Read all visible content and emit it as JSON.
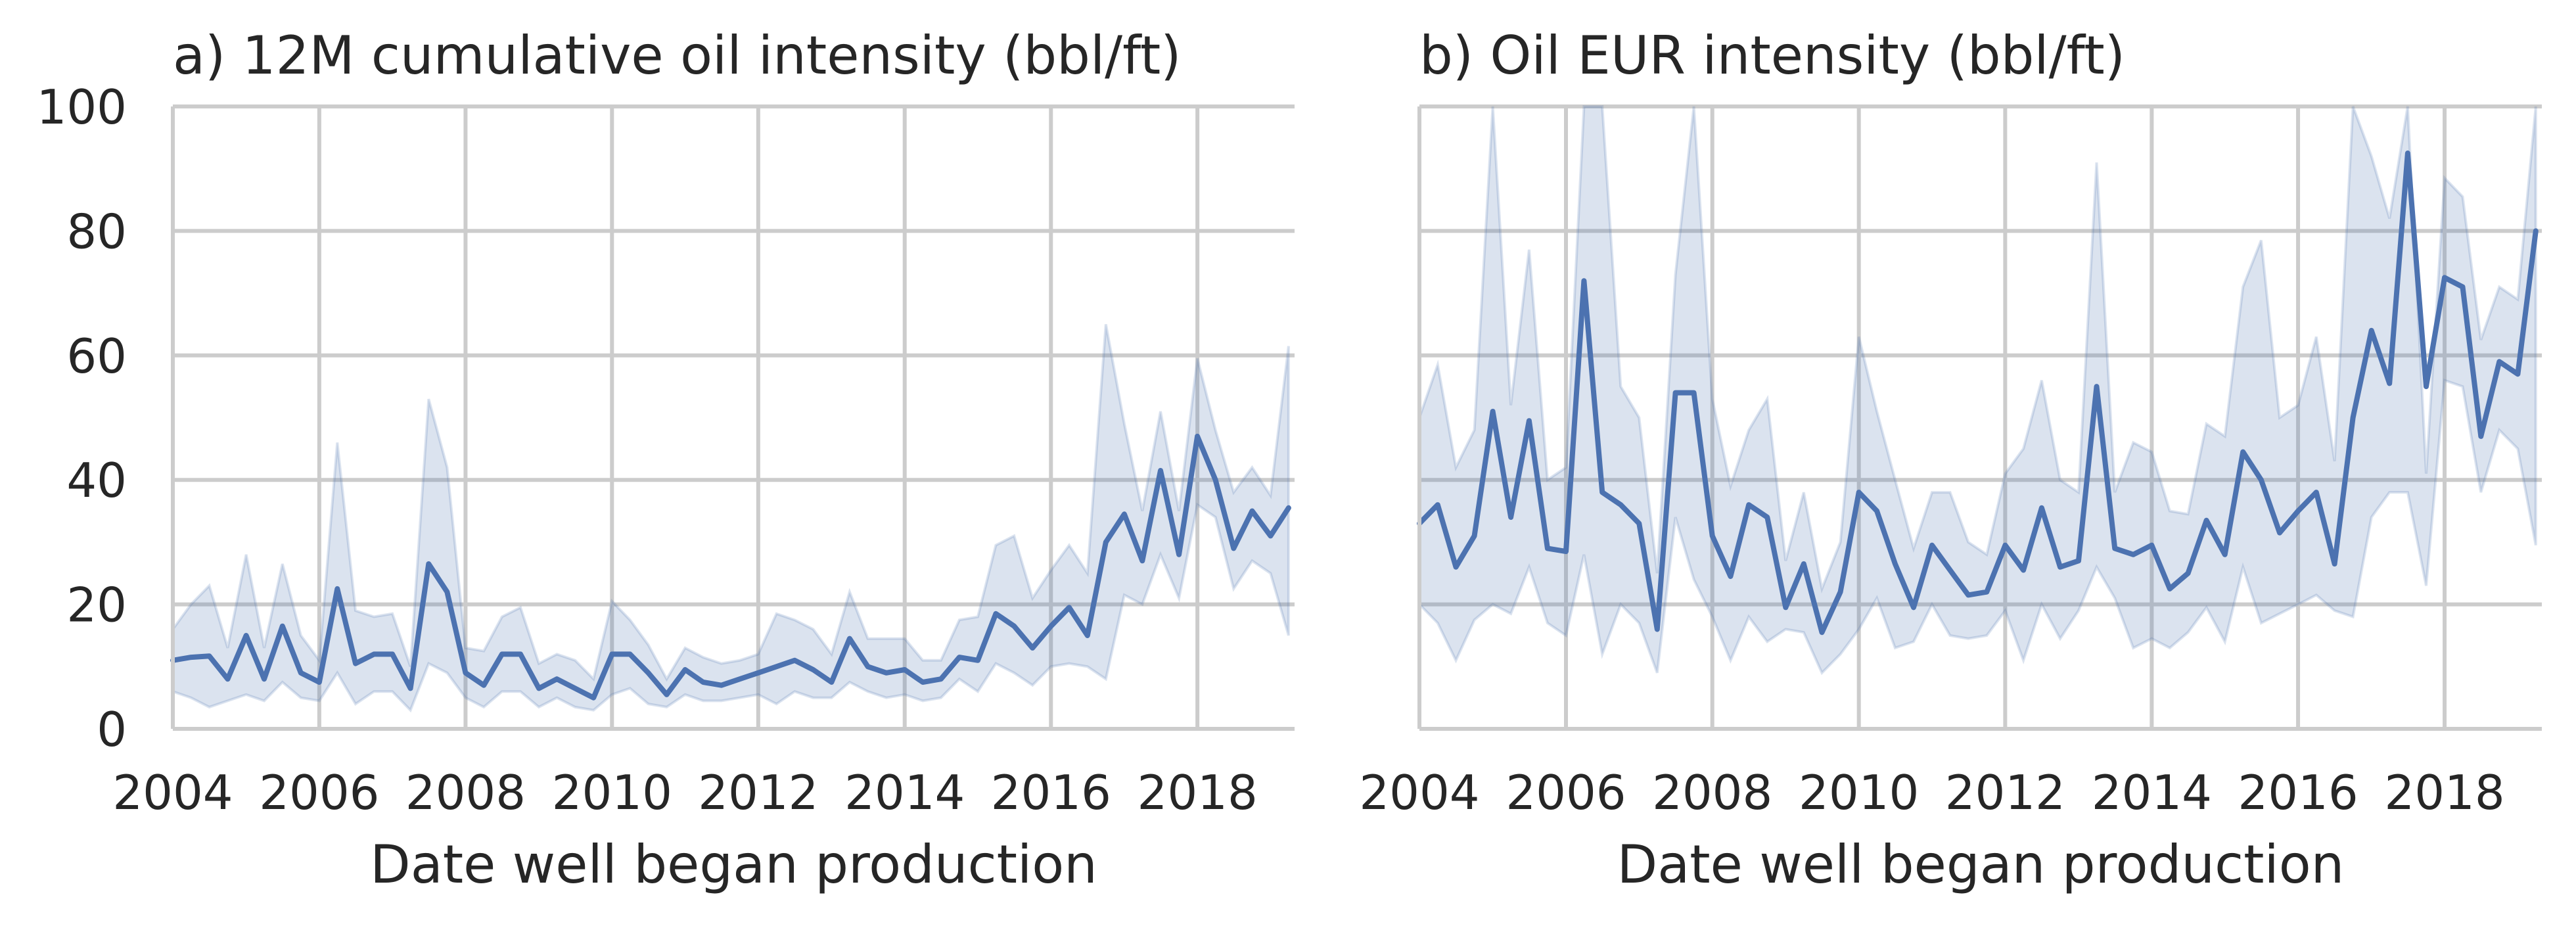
{
  "colors": {
    "line": "#4c72b0",
    "band": "#4c72b0",
    "grid": "#cccccc",
    "text": "#262626"
  },
  "chart_data": [
    {
      "type": "line",
      "title": "a) 12M cumulative oil intensity (bbl/ft)",
      "xlabel": "Date well began production",
      "ylabel": "",
      "xlim": [
        "2004-01-01",
        "2019-05-01"
      ],
      "ylim": [
        0,
        100
      ],
      "xticks": [
        "2004",
        "2006",
        "2008",
        "2010",
        "2012",
        "2014",
        "2016",
        "2018"
      ],
      "yticks": [
        "0",
        "20",
        "40",
        "60",
        "80",
        "100"
      ],
      "grid": true,
      "legend": "none",
      "series": [
        {
          "x": [
            "2004-01-01",
            "2004-04-01",
            "2004-07-01",
            "2004-10-01",
            "2005-01-01",
            "2005-04-01",
            "2005-07-01",
            "2005-10-01",
            "2006-01-01",
            "2006-04-01",
            "2006-07-01",
            "2006-10-01",
            "2007-01-01",
            "2007-04-01",
            "2007-07-01",
            "2007-10-01",
            "2008-01-01",
            "2008-04-01",
            "2008-07-01",
            "2008-10-01",
            "2009-01-01",
            "2009-04-01",
            "2009-07-01",
            "2009-10-01",
            "2010-01-01",
            "2010-04-01",
            "2010-07-01",
            "2010-10-01",
            "2011-01-01",
            "2011-04-01",
            "2011-07-01",
            "2011-10-01",
            "2012-01-01",
            "2012-04-01",
            "2012-07-01",
            "2012-10-01",
            "2013-01-01",
            "2013-04-01",
            "2013-07-01",
            "2013-10-01",
            "2014-01-01",
            "2014-04-01",
            "2014-07-01",
            "2014-10-01",
            "2015-01-01",
            "2015-04-01",
            "2015-07-01",
            "2015-10-01",
            "2016-01-01",
            "2016-04-01",
            "2016-07-01",
            "2016-10-01",
            "2017-01-01",
            "2017-04-01",
            "2017-07-01",
            "2017-10-01",
            "2018-01-01",
            "2018-04-01",
            "2018-07-01",
            "2018-10-01",
            "2019-01-01",
            "2019-04-01"
          ],
          "y": [
            11,
            11.5,
            11.7,
            8,
            15,
            8,
            16.5,
            9,
            7.5,
            22.5,
            10.5,
            12,
            12,
            6.5,
            26.5,
            22,
            9,
            7,
            12,
            12,
            6.5,
            8,
            6.5,
            5,
            12,
            12,
            9,
            5.5,
            9.5,
            7.5,
            7,
            8,
            9,
            10,
            11,
            9.5,
            7.5,
            14.5,
            10,
            9,
            9.5,
            7.5,
            8,
            11.5,
            11,
            18.5,
            16.5,
            13,
            16.5,
            19.5,
            15,
            30,
            34.5,
            27,
            41.5,
            28,
            47,
            40,
            29,
            35,
            31,
            35.5
          ],
          "lower": [
            6,
            5,
            3.5,
            4.5,
            5.5,
            4.5,
            7.5,
            5,
            4.5,
            9,
            4,
            6,
            6,
            3,
            10.5,
            9,
            5,
            3.5,
            6,
            6,
            3.5,
            5,
            3.5,
            3,
            5.5,
            6.5,
            4,
            3.5,
            5.5,
            4.5,
            4.5,
            5,
            5.5,
            4,
            6,
            5,
            5,
            7.5,
            6,
            5,
            5.5,
            4.5,
            5,
            8,
            6,
            10.5,
            9,
            7,
            10,
            10.5,
            10,
            8,
            21.5,
            20,
            28,
            21,
            36,
            34,
            22.5,
            27,
            25,
            15
          ],
          "upper": [
            16,
            20,
            23,
            13,
            28,
            13,
            26.5,
            15,
            11,
            46,
            19,
            18,
            18.5,
            10,
            53,
            42,
            13,
            12.5,
            18,
            19.5,
            10.5,
            12,
            11,
            8,
            20.5,
            17.5,
            13.5,
            8,
            13,
            11.5,
            10.5,
            11,
            12,
            18.5,
            17.5,
            16,
            12,
            22,
            14.5,
            14.5,
            14.5,
            11,
            11,
            17.5,
            18,
            29.5,
            31,
            21,
            25.5,
            29.5,
            25,
            65,
            49,
            35,
            51,
            35,
            59.5,
            48,
            38,
            42,
            37.5,
            61.5
          ]
        }
      ]
    },
    {
      "type": "line",
      "title": "b) Oil EUR intensity (bbl/ft)",
      "xlabel": "Date well began production",
      "ylabel": "",
      "xlim": [
        "2004-01-01",
        "2019-05-01"
      ],
      "ylim": [
        0,
        100
      ],
      "xticks": [
        "2004",
        "2006",
        "2008",
        "2010",
        "2012",
        "2014",
        "2016",
        "2018"
      ],
      "yticks": [],
      "grid": true,
      "legend": "none",
      "series": [
        {
          "x": [
            "2004-01-01",
            "2004-04-01",
            "2004-07-01",
            "2004-10-01",
            "2005-01-01",
            "2005-04-01",
            "2005-07-01",
            "2005-10-01",
            "2006-01-01",
            "2006-04-01",
            "2006-07-01",
            "2006-10-01",
            "2007-01-01",
            "2007-04-01",
            "2007-07-01",
            "2007-10-01",
            "2008-01-01",
            "2008-04-01",
            "2008-07-01",
            "2008-10-01",
            "2009-01-01",
            "2009-04-01",
            "2009-07-01",
            "2009-10-01",
            "2010-01-01",
            "2010-04-01",
            "2010-07-01",
            "2010-10-01",
            "2011-01-01",
            "2011-04-01",
            "2011-07-01",
            "2011-10-01",
            "2012-01-01",
            "2012-04-01",
            "2012-07-01",
            "2012-10-01",
            "2013-01-01",
            "2013-04-01",
            "2013-07-01",
            "2013-10-01",
            "2014-01-01",
            "2014-04-01",
            "2014-07-01",
            "2014-10-01",
            "2015-01-01",
            "2015-04-01",
            "2015-07-01",
            "2015-10-01",
            "2016-01-01",
            "2016-04-01",
            "2016-07-01",
            "2016-10-01",
            "2017-01-01",
            "2017-04-01",
            "2017-07-01",
            "2017-10-01",
            "2018-01-01",
            "2018-04-01",
            "2018-07-01",
            "2018-10-01",
            "2019-01-01",
            "2019-04-01"
          ],
          "y": [
            33,
            36,
            26,
            31,
            51,
            34,
            49.5,
            29,
            28.5,
            72,
            38,
            36,
            33,
            16,
            54,
            54,
            31,
            24.5,
            36,
            34,
            19.5,
            26.5,
            15.5,
            22,
            38,
            35,
            26.5,
            19.5,
            29.5,
            25.5,
            21.5,
            22,
            29.5,
            25.5,
            35.5,
            26,
            27,
            55,
            29,
            28,
            29.5,
            22.5,
            25,
            33.5,
            28,
            44.5,
            40,
            31.5,
            35,
            38,
            26.5,
            50,
            64,
            55.5,
            92.5,
            55,
            72.5,
            71,
            47,
            59,
            57,
            80
          ],
          "lower": [
            20,
            17,
            11,
            17.5,
            20,
            18.5,
            26,
            17,
            15,
            28,
            12,
            20,
            17,
            9,
            34,
            24,
            18,
            11,
            18,
            14,
            16,
            15.5,
            9,
            12,
            16,
            21,
            13,
            14,
            20,
            15,
            14.5,
            15,
            19,
            11,
            20,
            14.5,
            19,
            26,
            21,
            13,
            14.5,
            13,
            15.5,
            19.5,
            14,
            26,
            17,
            18.5,
            20,
            21.5,
            19,
            18,
            34,
            38,
            38,
            23,
            56,
            55,
            38,
            48,
            45,
            29.5
          ],
          "upper": [
            50,
            58.5,
            42,
            48,
            100,
            52,
            77,
            40,
            42,
            100,
            100,
            55,
            50,
            25,
            73,
            100,
            53,
            39,
            48,
            53,
            27,
            38,
            22.5,
            30,
            63,
            51,
            40,
            29,
            38,
            38,
            30,
            28,
            41,
            45,
            56,
            40,
            38,
            91,
            38,
            46,
            44.5,
            35,
            34.5,
            49,
            47,
            71,
            78.5,
            50,
            52,
            63,
            43,
            100,
            92,
            82,
            100,
            41,
            88.5,
            85.5,
            62.5,
            71,
            69,
            100
          ]
        }
      ]
    }
  ]
}
